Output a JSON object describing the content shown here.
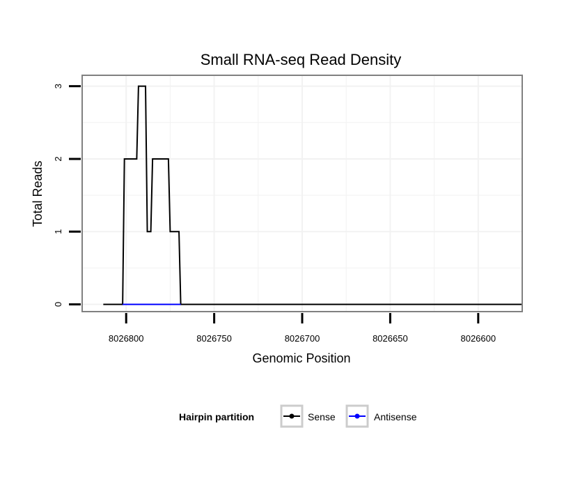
{
  "chart_data": {
    "type": "line",
    "title": "Small RNA-seq Read Density",
    "xlabel": "Genomic Position",
    "ylabel": "Total Reads",
    "x_reversed": true,
    "xlim": [
      8026825,
      8026575
    ],
    "ylim": [
      -0.1,
      3.15
    ],
    "x_ticks": [
      8026800,
      8026750,
      8026700,
      8026650,
      8026600
    ],
    "x_tick_labels": [
      "8026800",
      "8026750",
      "8026700",
      "8026650",
      "8026600"
    ],
    "y_ticks": [
      0,
      1,
      2,
      3
    ],
    "y_tick_labels": [
      "0",
      "1",
      "2",
      "3"
    ],
    "grid": true,
    "legend": {
      "title": "Hairpin partition",
      "placement": "bottom",
      "entries": [
        {
          "name": "Sense",
          "color": "#000000"
        },
        {
          "name": "Antisense",
          "color": "#0000ff"
        }
      ]
    },
    "series": [
      {
        "name": "Sense",
        "color": "#000000",
        "x": [
          8026813,
          8026802,
          8026801,
          8026794,
          8026793,
          8026789,
          8026788,
          8026786,
          8026785,
          8026776,
          8026775,
          8026770,
          8026769,
          8026763,
          8026762,
          8026575
        ],
        "y": [
          0,
          0,
          2,
          2,
          3,
          3,
          1,
          1,
          2,
          2,
          1,
          1,
          0,
          0,
          0,
          0
        ]
      },
      {
        "name": "Antisense",
        "color": "#0000ff",
        "x": [
          8026802,
          8026769
        ],
        "y": [
          0,
          0
        ]
      }
    ]
  }
}
